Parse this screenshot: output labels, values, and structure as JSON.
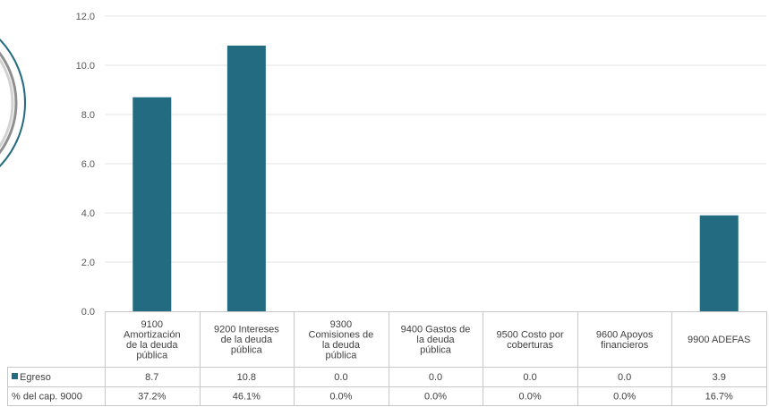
{
  "chart_data": {
    "type": "bar",
    "categories": [
      [
        "9100",
        "Amortización",
        "de la deuda",
        "pública"
      ],
      [
        "9200 Intereses",
        "de la deuda",
        "pública"
      ],
      [
        "9300",
        "Comisiones  de",
        "la deuda",
        "pública"
      ],
      [
        "9400 Gastos de",
        "la deuda",
        "pública"
      ],
      [
        "9500 Costo por",
        "coberturas"
      ],
      [
        "9600 Apoyos",
        "financieros"
      ],
      [
        "9900 ADEFAS"
      ]
    ],
    "series": [
      {
        "name": "Egreso",
        "values": [
          8.7,
          10.8,
          0.0,
          0.0,
          0.0,
          0.0,
          3.9
        ]
      }
    ],
    "table_rows": [
      {
        "label": "Egreso",
        "values": [
          "8.7",
          "10.8",
          "0.0",
          "0.0",
          "0.0",
          "0.0",
          "3.9"
        ]
      },
      {
        "label": "% del cap. 9000",
        "values": [
          "37.2%",
          "46.1%",
          "0.0%",
          "0.0%",
          "0.0%",
          "0.0%",
          "16.7%"
        ]
      }
    ],
    "yticks": [
      "0.0",
      "2.0",
      "4.0",
      "6.0",
      "8.0",
      "10.0",
      "12.0"
    ],
    "ylim": [
      0,
      12
    ],
    "grid": true,
    "legend": "data-table",
    "bar_color": "#236b80",
    "grid_color": "#e3e3e3",
    "border_color": "#c8c8c8"
  }
}
